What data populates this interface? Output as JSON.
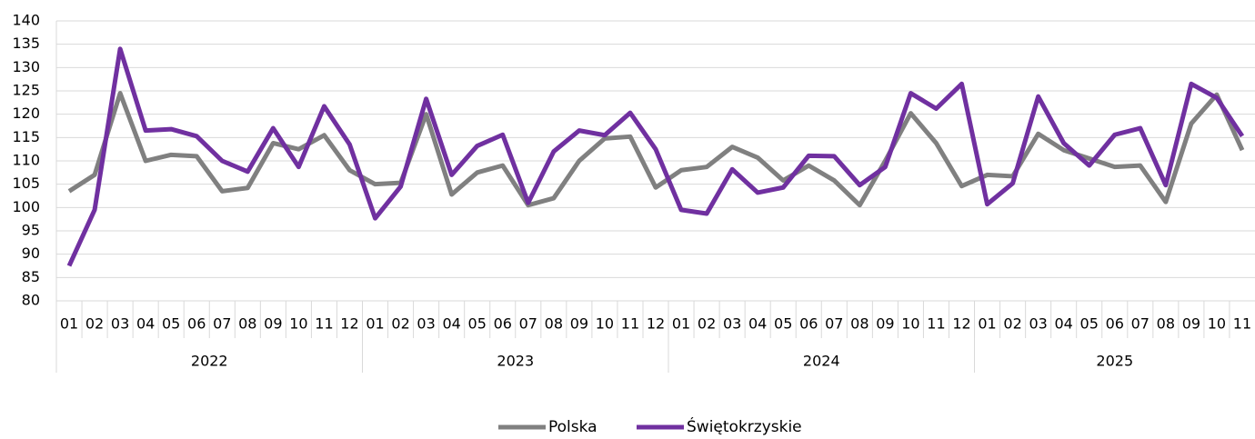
{
  "chart_data": {
    "type": "line",
    "categories": [
      "01",
      "02",
      "03",
      "04",
      "05",
      "06",
      "07",
      "08",
      "09",
      "10",
      "11",
      "12",
      "01",
      "02",
      "03",
      "04",
      "05",
      "06",
      "07",
      "08",
      "09",
      "10",
      "11",
      "12",
      "01",
      "02",
      "03",
      "04",
      "05",
      "06",
      "07",
      "08",
      "09",
      "10",
      "11",
      "12",
      "01",
      "02",
      "03",
      "04",
      "05",
      "06",
      "07",
      "08",
      "09",
      "10",
      "11"
    ],
    "groups": [
      {
        "label": "2022",
        "span": 12
      },
      {
        "label": "2023",
        "span": 12
      },
      {
        "label": "2024",
        "span": 12
      },
      {
        "label": "2025",
        "span": 11
      }
    ],
    "series": [
      {
        "name": "Polska",
        "color": "#808080",
        "values": [
          103.5,
          107,
          124.5,
          110,
          111.3,
          111,
          103.5,
          104.2,
          113.8,
          112.5,
          115.5,
          108,
          105,
          105.3,
          120,
          102.8,
          107.5,
          109,
          100.5,
          102,
          110,
          114.8,
          115.2,
          104.3,
          108,
          108.7,
          113,
          110.7,
          105.8,
          109,
          105.8,
          100.5,
          110,
          120.2,
          113.8,
          104.6,
          107,
          106.7,
          115.8,
          112.3,
          110.5,
          108.7,
          109,
          101.2,
          118,
          124.2,
          112.3
        ]
      },
      {
        "name": "Świętokrzyskie",
        "color": "#7030a0",
        "values": [
          87.5,
          99.5,
          134,
          116.5,
          116.8,
          115.3,
          110,
          107.7,
          117,
          108.7,
          121.7,
          113.5,
          97.7,
          104.5,
          123.3,
          107,
          113.2,
          115.6,
          101,
          112,
          116.5,
          115.5,
          120.3,
          112.5,
          99.5,
          98.7,
          108.2,
          103.2,
          104.3,
          111.1,
          111,
          104.8,
          108.7,
          124.5,
          121.2,
          126.5,
          100.7,
          105.2,
          123.8,
          113.8,
          109,
          115.6,
          117,
          104.8,
          126.5,
          123.5,
          115.3
        ]
      }
    ],
    "ylim": [
      80,
      140
    ],
    "yticks": [
      80,
      85,
      90,
      95,
      100,
      105,
      110,
      115,
      120,
      125,
      130,
      135,
      140
    ],
    "grid": true,
    "legend": "bottom"
  }
}
